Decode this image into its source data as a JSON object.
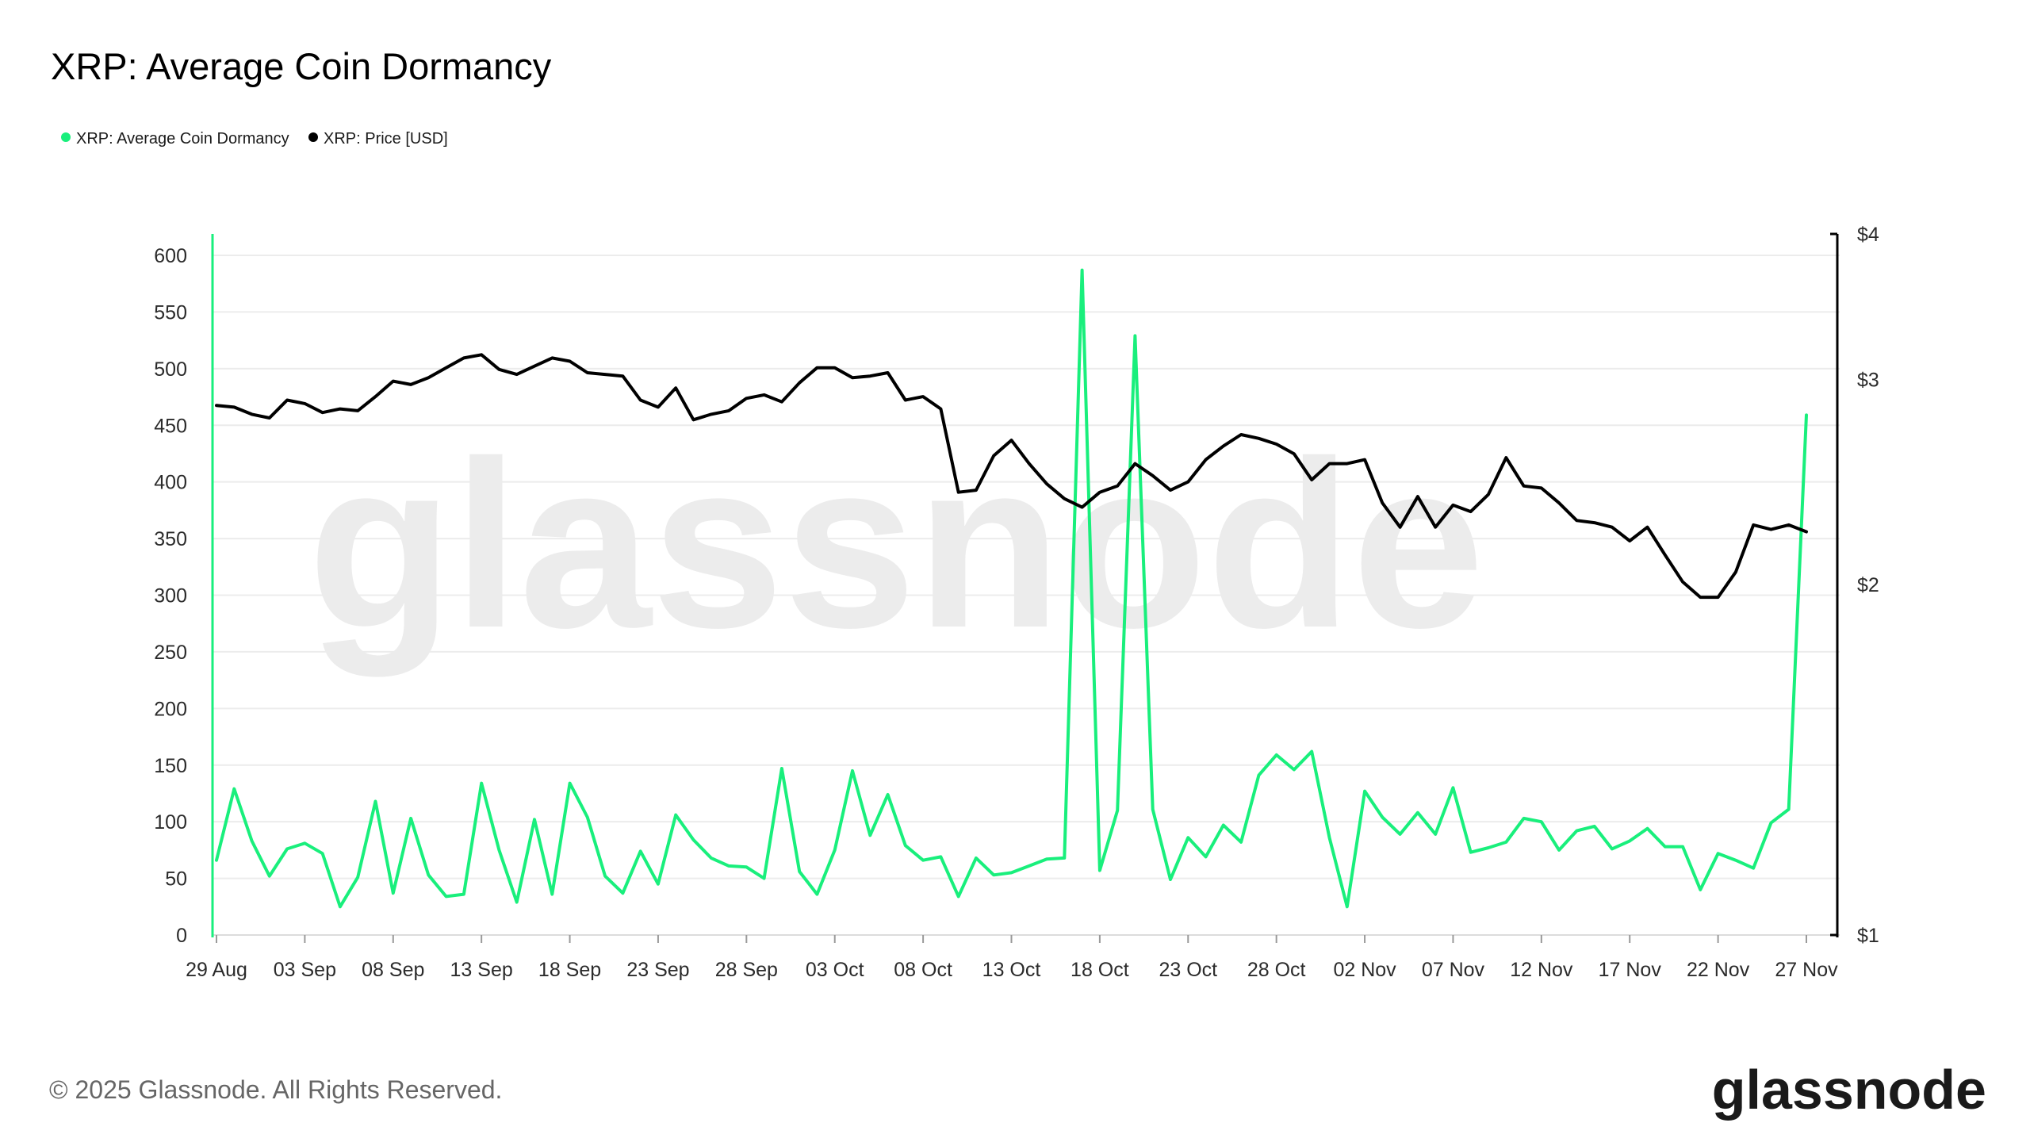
{
  "header": {
    "title": "XRP: Average Coin Dormancy"
  },
  "legend": {
    "items": [
      {
        "label": "XRP: Average Coin Dormancy",
        "color": "#19ef7c"
      },
      {
        "label": "XRP: Price [USD]",
        "color": "#000000"
      }
    ]
  },
  "watermark": "glassnode",
  "footer": {
    "copyright": "© 2025 Glassnode. All Rights Reserved.",
    "logo_text": "glassnode"
  },
  "chart_data": {
    "type": "line",
    "title": "XRP: Average Coin Dormancy",
    "grid": "horizontal",
    "legend_position": "top-left",
    "x": [
      "29 Aug",
      "30 Aug",
      "31 Aug",
      "01 Sep",
      "02 Sep",
      "03 Sep",
      "04 Sep",
      "05 Sep",
      "06 Sep",
      "07 Sep",
      "08 Sep",
      "09 Sep",
      "10 Sep",
      "11 Sep",
      "12 Sep",
      "13 Sep",
      "14 Sep",
      "15 Sep",
      "16 Sep",
      "17 Sep",
      "18 Sep",
      "19 Sep",
      "20 Sep",
      "21 Sep",
      "22 Sep",
      "23 Sep",
      "24 Sep",
      "25 Sep",
      "26 Sep",
      "27 Sep",
      "28 Sep",
      "29 Sep",
      "30 Sep",
      "01 Oct",
      "02 Oct",
      "03 Oct",
      "04 Oct",
      "05 Oct",
      "06 Oct",
      "07 Oct",
      "08 Oct",
      "09 Oct",
      "10 Oct",
      "11 Oct",
      "12 Oct",
      "13 Oct",
      "14 Oct",
      "15 Oct",
      "16 Oct",
      "17 Oct",
      "18 Oct",
      "19 Oct",
      "20 Oct",
      "21 Oct",
      "22 Oct",
      "23 Oct",
      "24 Oct",
      "25 Oct",
      "26 Oct",
      "27 Oct",
      "28 Oct",
      "29 Oct",
      "30 Oct",
      "31 Oct",
      "01 Nov",
      "02 Nov",
      "03 Nov",
      "04 Nov",
      "05 Nov",
      "06 Nov",
      "07 Nov",
      "08 Nov",
      "09 Nov",
      "10 Nov",
      "11 Nov",
      "12 Nov",
      "13 Nov",
      "14 Nov",
      "15 Nov",
      "16 Nov",
      "17 Nov",
      "18 Nov",
      "19 Nov",
      "20 Nov",
      "21 Nov",
      "22 Nov",
      "23 Nov",
      "24 Nov",
      "25 Nov",
      "26 Nov",
      "27 Nov"
    ],
    "x_ticks": [
      "29 Aug",
      "03 Sep",
      "08 Sep",
      "13 Sep",
      "18 Sep",
      "23 Sep",
      "28 Sep",
      "03 Oct",
      "08 Oct",
      "13 Oct",
      "18 Oct",
      "23 Oct",
      "28 Oct",
      "02 Nov",
      "07 Nov",
      "12 Nov",
      "17 Nov",
      "22 Nov",
      "27 Nov"
    ],
    "y_left": {
      "label": "",
      "range": [
        0,
        600
      ],
      "ticks": [
        "0",
        "50",
        "100",
        "150",
        "200",
        "250",
        "300",
        "350",
        "400",
        "450",
        "500",
        "550",
        "600"
      ]
    },
    "y_right": {
      "label": "",
      "scale": "log",
      "range": [
        1,
        4
      ],
      "ticks": [
        {
          "value": 1,
          "label": "$1"
        },
        {
          "value": 2,
          "label": "$2"
        },
        {
          "value": 3,
          "label": "$3"
        },
        {
          "value": 4,
          "label": "$4"
        }
      ]
    },
    "series": [
      {
        "name": "XRP: Average Coin Dormancy",
        "axis": "left",
        "color": "#19ef7c",
        "values": [
          66,
          129,
          83,
          52,
          76,
          81,
          72,
          25,
          51,
          118,
          37,
          103,
          53,
          34,
          36,
          134,
          75,
          29,
          102,
          36,
          134,
          104,
          52,
          37,
          74,
          45,
          106,
          84,
          68,
          61,
          60,
          50,
          147,
          56,
          36,
          75,
          145,
          88,
          124,
          79,
          66,
          69,
          34,
          68,
          53,
          55,
          61,
          67,
          68,
          587,
          57,
          110,
          529,
          111,
          49,
          86,
          69,
          97,
          82,
          141,
          159,
          146,
          162,
          86,
          25,
          127,
          104,
          89,
          108,
          89,
          130,
          73,
          77,
          82,
          103,
          100,
          75,
          92,
          96,
          76,
          83,
          94,
          78,
          78,
          40,
          72,
          66,
          59,
          99,
          111,
          459
        ]
      },
      {
        "name": "XRP: Price [USD]",
        "axis": "right",
        "color": "#000000",
        "values": [
          2.85,
          2.84,
          2.8,
          2.78,
          2.88,
          2.86,
          2.81,
          2.83,
          2.82,
          2.9,
          2.99,
          2.97,
          3.01,
          3.07,
          3.13,
          3.15,
          3.06,
          3.03,
          3.08,
          3.13,
          3.11,
          3.04,
          3.03,
          3.02,
          2.88,
          2.84,
          2.95,
          2.77,
          2.8,
          2.82,
          2.89,
          2.91,
          2.87,
          2.98,
          3.07,
          3.07,
          3.01,
          3.02,
          3.04,
          2.88,
          2.9,
          2.83,
          2.4,
          2.41,
          2.58,
          2.66,
          2.54,
          2.44,
          2.37,
          2.33,
          2.4,
          2.43,
          2.54,
          2.48,
          2.41,
          2.45,
          2.56,
          2.63,
          2.69,
          2.67,
          2.64,
          2.59,
          2.46,
          2.54,
          2.54,
          2.56,
          2.35,
          2.24,
          2.38,
          2.24,
          2.34,
          2.31,
          2.39,
          2.57,
          2.43,
          2.42,
          2.35,
          2.27,
          2.26,
          2.24,
          2.18,
          2.24,
          2.12,
          2.01,
          1.95,
          1.95,
          2.05,
          2.25,
          2.23,
          2.25,
          2.22
        ]
      }
    ]
  }
}
